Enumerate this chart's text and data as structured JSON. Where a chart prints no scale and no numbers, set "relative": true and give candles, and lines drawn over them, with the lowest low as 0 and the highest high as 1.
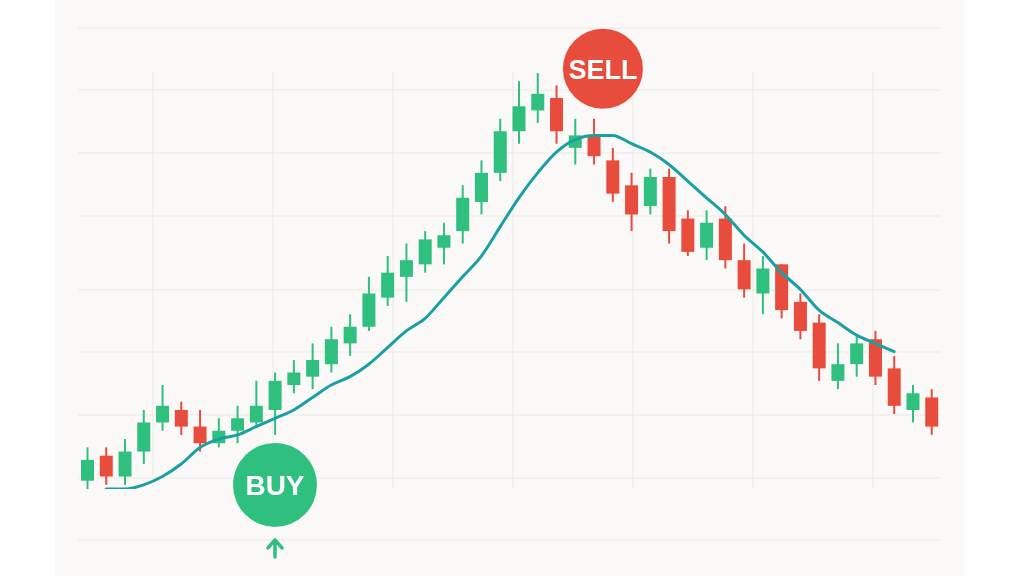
{
  "chart_data": {
    "type": "candlestick",
    "relative": true,
    "grid": true,
    "categories": [
      null,
      null,
      null,
      null,
      null,
      null,
      null,
      null,
      null,
      null,
      null,
      null,
      null,
      null,
      null,
      null,
      null,
      null,
      null,
      null,
      null,
      null,
      null,
      null,
      null,
      null,
      null,
      null,
      null,
      null,
      null,
      null,
      null,
      null,
      null,
      null,
      null,
      null,
      null,
      null,
      null,
      null,
      null,
      null,
      null,
      null
    ],
    "ohlc": [
      [
        0.02,
        0.1,
        0,
        0.07
      ],
      [
        0.08,
        0.1,
        0.01,
        0.03
      ],
      [
        0.03,
        0.12,
        0.01,
        0.09
      ],
      [
        0.09,
        0.19,
        0.06,
        0.16
      ],
      [
        0.16,
        0.25,
        0.14,
        0.2
      ],
      [
        0.19,
        0.21,
        0.13,
        0.15
      ],
      [
        0.15,
        0.19,
        0.09,
        0.11
      ],
      [
        0.11,
        0.17,
        0.1,
        0.14
      ],
      [
        0.14,
        0.2,
        0.11,
        0.17
      ],
      [
        0.16,
        0.26,
        0.15,
        0.2
      ],
      [
        0.19,
        0.28,
        0.13,
        0.26
      ],
      [
        0.25,
        0.31,
        0.23,
        0.28
      ],
      [
        0.27,
        0.35,
        0.24,
        0.31
      ],
      [
        0.3,
        0.39,
        0.28,
        0.36
      ],
      [
        0.35,
        0.42,
        0.32,
        0.39
      ],
      [
        0.39,
        0.51,
        0.38,
        0.47
      ],
      [
        0.46,
        0.56,
        0.44,
        0.52
      ],
      [
        0.51,
        0.59,
        0.45,
        0.55
      ],
      [
        0.54,
        0.62,
        0.52,
        0.6
      ],
      [
        0.58,
        0.64,
        0.54,
        0.61
      ],
      [
        0.62,
        0.73,
        0.59,
        0.7
      ],
      [
        0.69,
        0.79,
        0.66,
        0.76
      ],
      [
        0.76,
        0.89,
        0.74,
        0.86
      ],
      [
        0.86,
        0.98,
        0.83,
        0.92
      ],
      [
        0.91,
        1,
        0.88,
        0.95
      ],
      [
        0.94,
        0.97,
        0.83,
        0.86
      ],
      [
        0.82,
        0.89,
        0.78,
        0.85
      ],
      [
        0.85,
        0.89,
        0.78,
        0.8
      ],
      [
        0.79,
        0.82,
        0.69,
        0.71
      ],
      [
        0.73,
        0.76,
        0.62,
        0.66
      ],
      [
        0.68,
        0.77,
        0.66,
        0.75
      ],
      [
        0.75,
        0.77,
        0.59,
        0.62
      ],
      [
        0.65,
        0.67,
        0.56,
        0.57
      ],
      [
        0.58,
        0.67,
        0.55,
        0.64
      ],
      [
        0.65,
        0.68,
        0.53,
        0.55
      ],
      [
        0.55,
        0.59,
        0.46,
        0.48
      ],
      [
        0.47,
        0.56,
        0.42,
        0.53
      ],
      [
        0.54,
        0.54,
        0.41,
        0.43
      ],
      [
        0.45,
        0.47,
        0.36,
        0.38
      ],
      [
        0.4,
        0.42,
        0.26,
        0.29
      ],
      [
        0.26,
        0.35,
        0.24,
        0.3
      ],
      [
        0.3,
        0.37,
        0.27,
        0.35
      ],
      [
        0.36,
        0.38,
        0.25,
        0.27
      ],
      [
        0.29,
        0.32,
        0.18,
        0.2
      ],
      [
        0.19,
        0.25,
        0.16,
        0.23
      ],
      [
        0.22,
        0.24,
        0.13,
        0.15
      ]
    ],
    "colors": [
      "#2fbf7e",
      "#e74c3c",
      "#2fbf7e",
      "#2fbf7e",
      "#2fbf7e",
      "#e74c3c",
      "#e74c3c",
      "#2fbf7e",
      "#2fbf7e",
      "#2fbf7e",
      "#2fbf7e",
      "#2fbf7e",
      "#2fbf7e",
      "#2fbf7e",
      "#2fbf7e",
      "#2fbf7e",
      "#2fbf7e",
      "#2fbf7e",
      "#2fbf7e",
      "#2fbf7e",
      "#2fbf7e",
      "#2fbf7e",
      "#2fbf7e",
      "#2fbf7e",
      "#2fbf7e",
      "#e74c3c",
      "#2fbf7e",
      "#e74c3c",
      "#e74c3c",
      "#e74c3c",
      "#2fbf7e",
      "#e74c3c",
      "#e74c3c",
      "#2fbf7e",
      "#e74c3c",
      "#e74c3c",
      "#2fbf7e",
      "#e74c3c",
      "#e74c3c",
      "#e74c3c",
      "#2fbf7e",
      "#2fbf7e",
      "#e74c3c",
      "#e74c3c",
      "#2fbf7e",
      "#e74c3c"
    ],
    "series": [
      {
        "type": "line",
        "color": "#1a9fa3",
        "values": [
          null,
          0.0,
          0.0,
          0.01,
          0.03,
          0.06,
          0.1,
          0.12,
          0.13,
          0.15,
          0.17,
          0.19,
          0.22,
          0.25,
          0.27,
          0.3,
          0.34,
          0.38,
          0.41,
          0.46,
          0.51,
          0.56,
          0.63,
          0.7,
          0.76,
          0.81,
          0.84,
          0.85,
          0.85,
          0.83,
          0.81,
          0.78,
          0.74,
          0.7,
          0.66,
          0.61,
          0.57,
          0.52,
          0.48,
          0.43,
          0.4,
          0.37,
          0.35,
          0.33,
          null,
          null
        ]
      }
    ],
    "annotations": [
      "BUY",
      "SELL"
    ]
  }
}
